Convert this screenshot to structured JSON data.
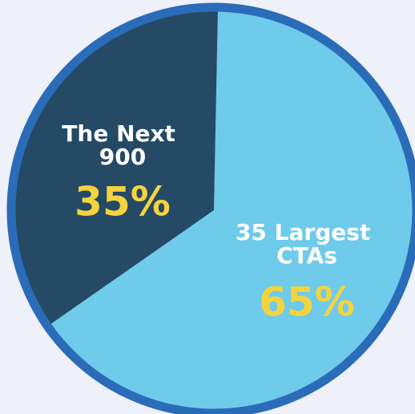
{
  "chart_data": {
    "type": "pie",
    "categories": [
      "35 Largest CTAs",
      "The Next 900"
    ],
    "values": [
      65,
      35
    ],
    "value_labels": [
      "65%",
      "35%"
    ],
    "colors": [
      "#6ecbea",
      "#244a66"
    ],
    "border_color": "#2a6cb8"
  }
}
